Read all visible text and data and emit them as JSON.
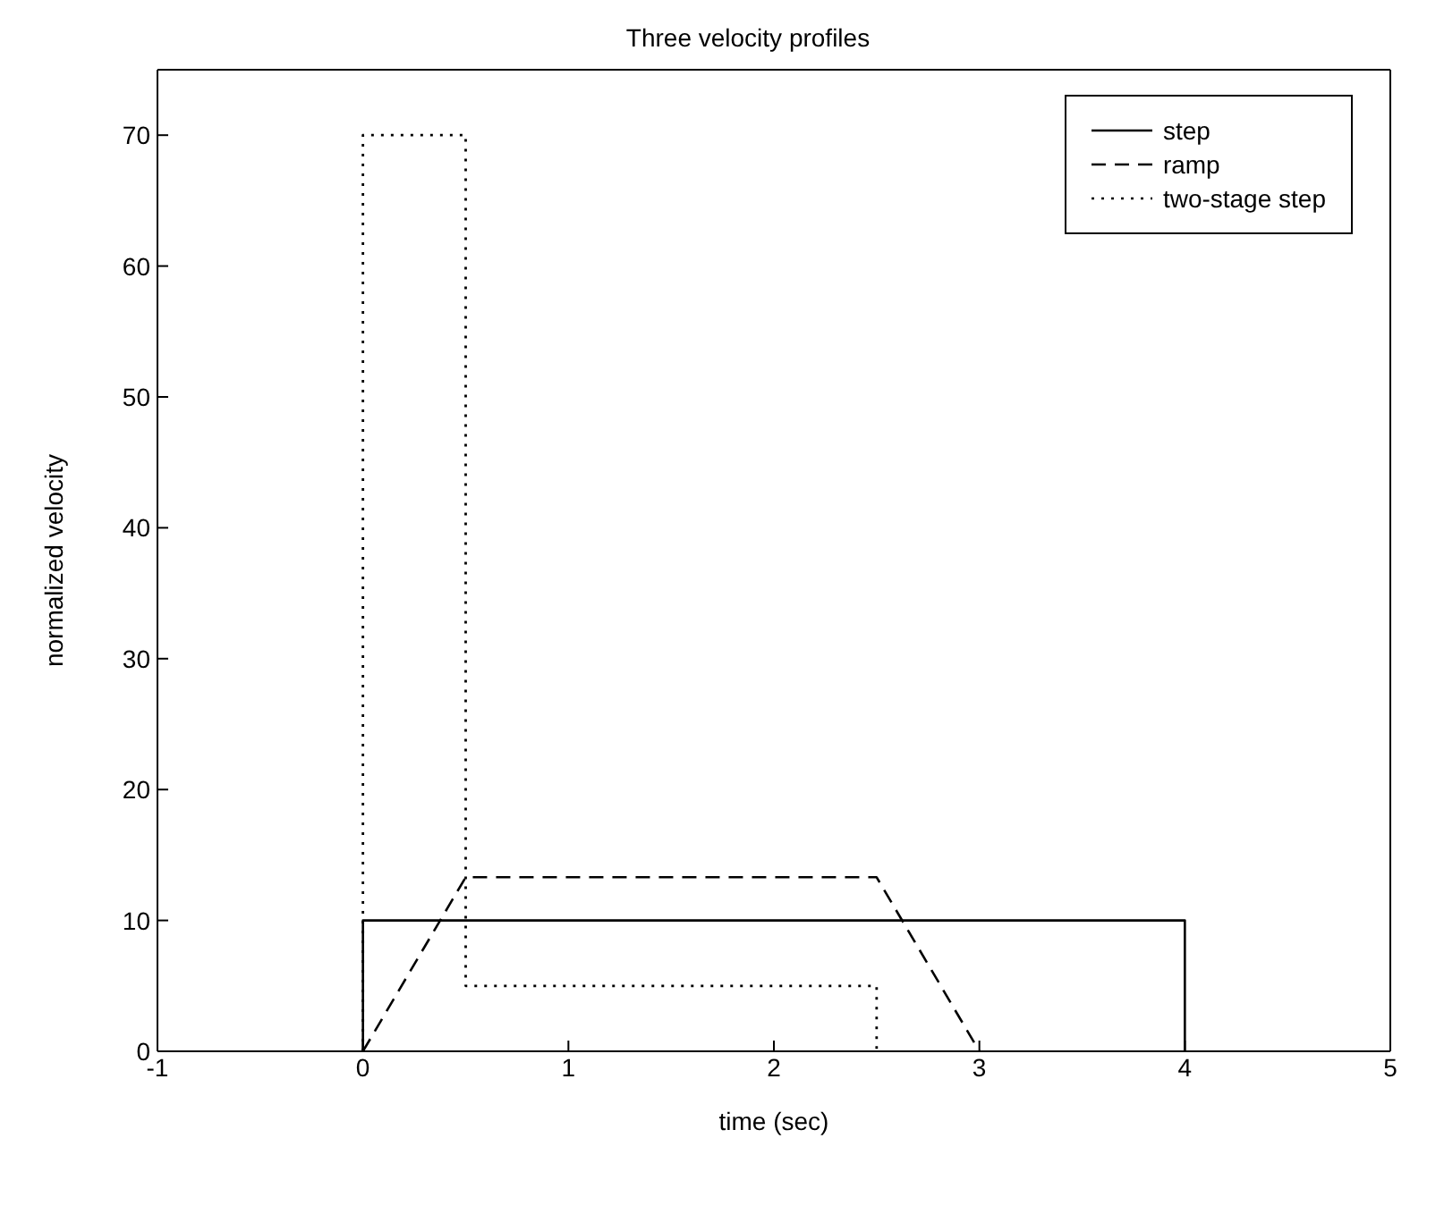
{
  "chart_data": {
    "type": "line",
    "title": "Three velocity profiles",
    "xlabel": "time (sec)",
    "ylabel": "normalized velocity",
    "xlim": [
      -1,
      5
    ],
    "xticks": [
      -1,
      0,
      1,
      2,
      3,
      4,
      5
    ],
    "ylim": [
      0,
      75
    ],
    "yticks": [
      0,
      10,
      20,
      30,
      40,
      50,
      60,
      70
    ],
    "grid": false,
    "legend": "top right",
    "marker": "none",
    "series": [
      {
        "name": "step",
        "color": "#000000",
        "line_style": "solid",
        "x": [
          0,
          0,
          4,
          4
        ],
        "values": [
          0,
          10,
          10,
          0
        ]
      },
      {
        "name": "ramp",
        "color": "#000000",
        "line_style": "dashed",
        "x": [
          0,
          0.5,
          2.5,
          3
        ],
        "values": [
          0,
          13.3,
          13.3,
          0
        ]
      },
      {
        "name": "two-stage step",
        "color": "#000000",
        "line_style": "dotted",
        "x": [
          0,
          0,
          0.5,
          0.5,
          2.5,
          2.5
        ],
        "values": [
          0,
          70,
          70,
          5,
          5,
          0
        ]
      }
    ]
  }
}
